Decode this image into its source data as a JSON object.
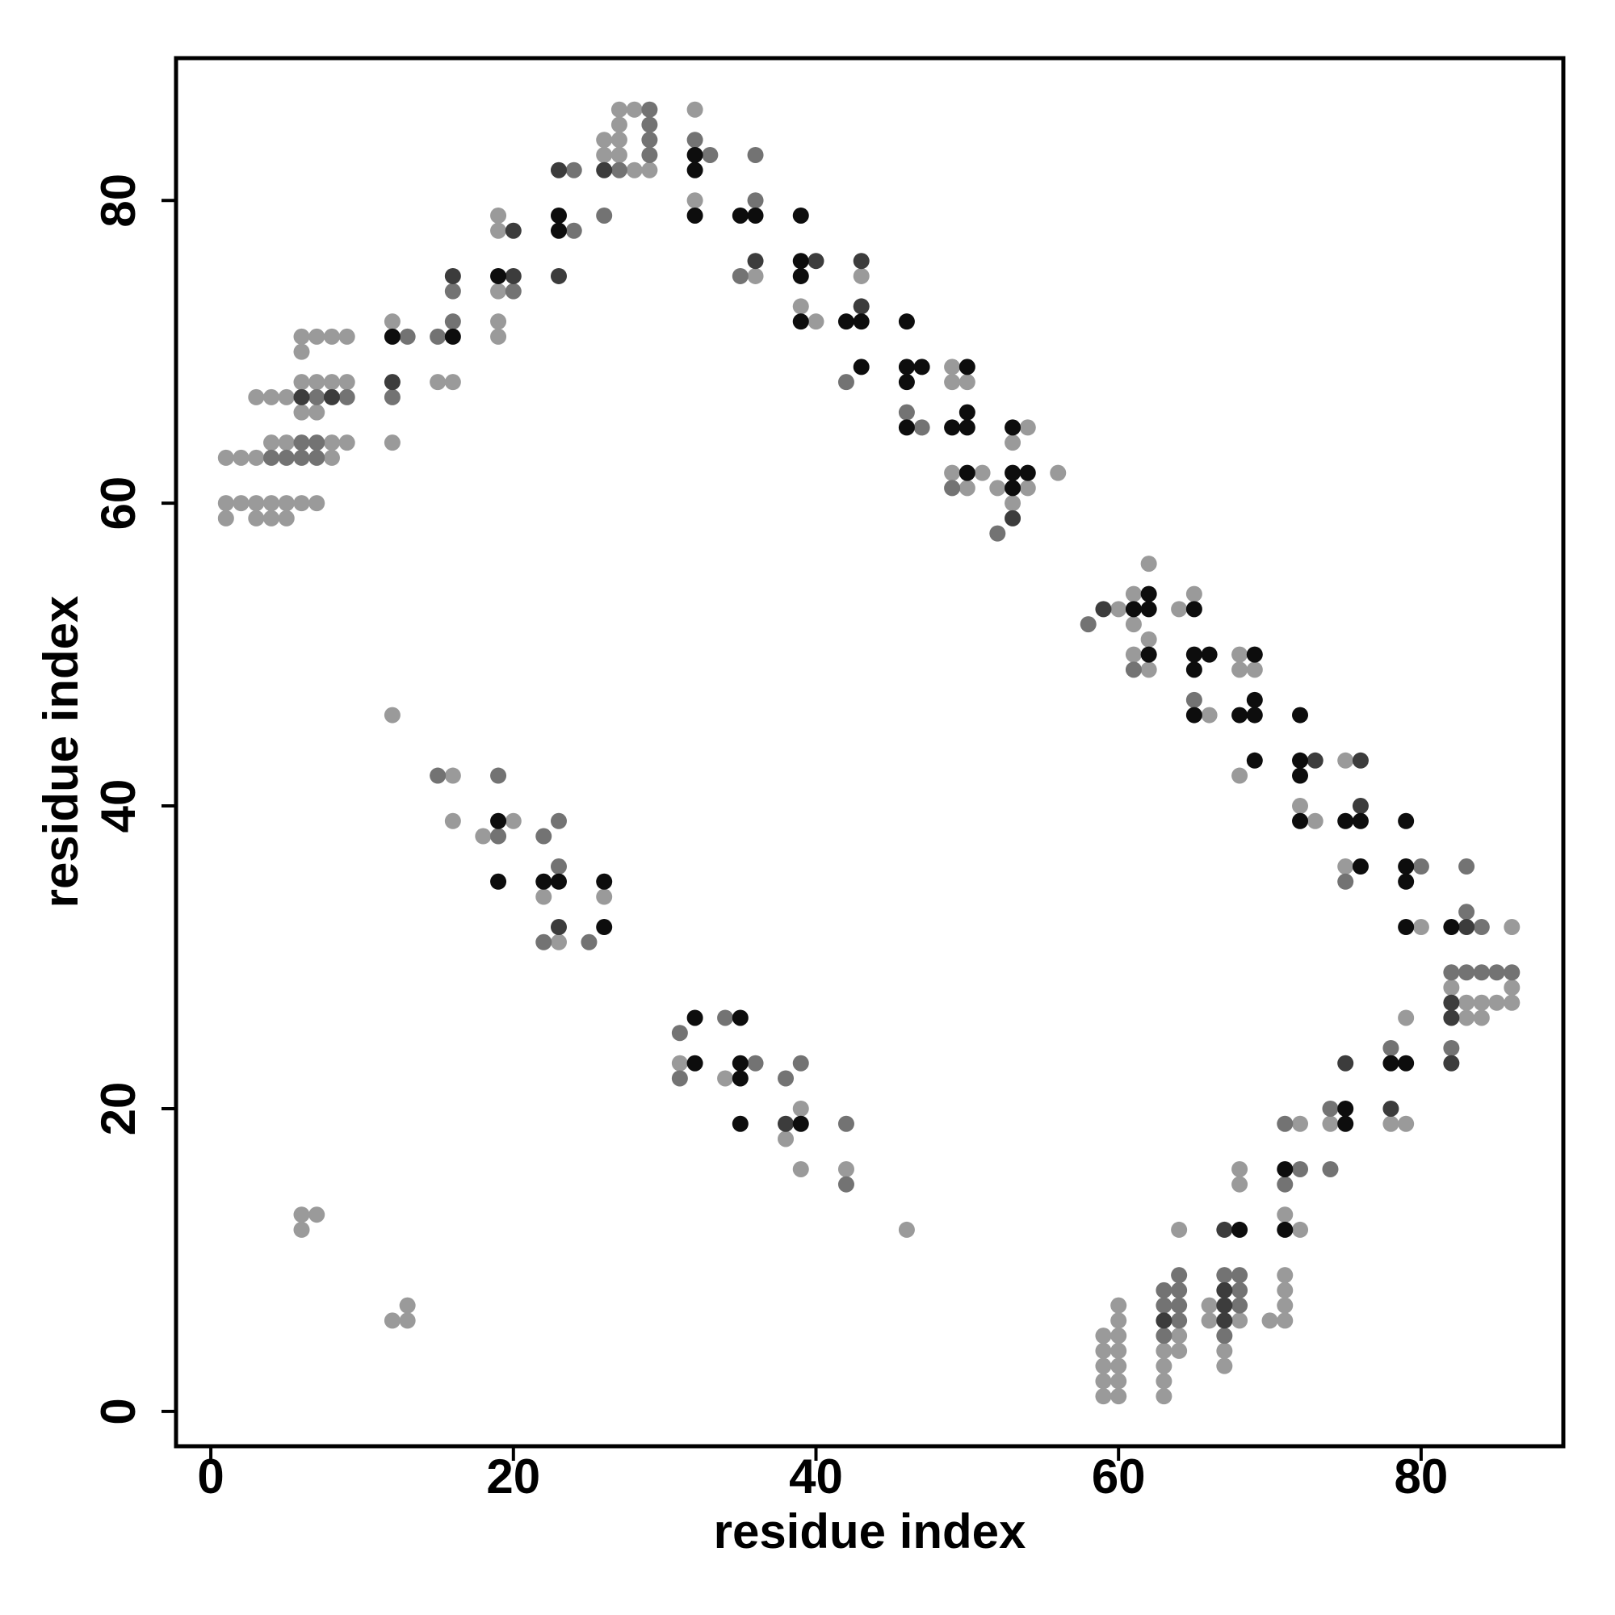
{
  "chart_data": {
    "type": "scatter",
    "x_label": "residue index",
    "y_label": "residue index",
    "xlim": [
      -2.3,
      89.4
    ],
    "ylim": [
      -2.3,
      89.4
    ],
    "xticks": [
      0,
      20,
      40,
      60,
      80
    ],
    "yticks": [
      0,
      20,
      40,
      60,
      80
    ],
    "series": [
      {
        "color": "#9a9a9a",
        "x": [
          1,
          3,
          4,
          5,
          1,
          2,
          3,
          4,
          5,
          6,
          7,
          1,
          2,
          3,
          8,
          4,
          5,
          8,
          9,
          6,
          7,
          3,
          4,
          5,
          6,
          7,
          8,
          9,
          6,
          6,
          7,
          8,
          9,
          12,
          12,
          15,
          16,
          19,
          19,
          19,
          19,
          19,
          26,
          26,
          27,
          27,
          27,
          27,
          28,
          28,
          29,
          32,
          32,
          36,
          39,
          40,
          43,
          49,
          49,
          49,
          50,
          50,
          51,
          52,
          53,
          53,
          54,
          54,
          56,
          60,
          61,
          61,
          61,
          62,
          62,
          62,
          64,
          65,
          66,
          68,
          68,
          68,
          69,
          72,
          73,
          75,
          75,
          80,
          86,
          82,
          86,
          83,
          84,
          85,
          86,
          83,
          84,
          78,
          79,
          79,
          74,
          71,
          72,
          72,
          70,
          71,
          71,
          71,
          71,
          67,
          67,
          68,
          68,
          68,
          66,
          66,
          63,
          63,
          63,
          63,
          64,
          64,
          64,
          59,
          59,
          59,
          59,
          59,
          60,
          60,
          60,
          60,
          60,
          60,
          60,
          6,
          6,
          7,
          12,
          12,
          13,
          13,
          16,
          16,
          18,
          20,
          22,
          23,
          26,
          31,
          34,
          38,
          39,
          39,
          42,
          46
        ],
        "y": [
          59,
          59,
          59,
          59,
          60,
          60,
          60,
          60,
          60,
          60,
          60,
          63,
          63,
          63,
          63,
          64,
          64,
          64,
          64,
          66,
          66,
          67,
          67,
          67,
          68,
          68,
          68,
          68,
          70,
          71,
          71,
          71,
          71,
          64,
          72,
          68,
          68,
          71,
          72,
          74,
          78,
          79,
          83,
          84,
          83,
          84,
          85,
          86,
          82,
          86,
          82,
          80,
          86,
          75,
          73,
          72,
          75,
          62,
          68,
          69,
          61,
          68,
          62,
          61,
          60,
          64,
          61,
          65,
          62,
          53,
          50,
          52,
          54,
          49,
          51,
          56,
          53,
          54,
          46,
          42,
          49,
          50,
          49,
          40,
          39,
          36,
          43,
          32,
          32,
          28,
          28,
          27,
          27,
          27,
          27,
          26,
          26,
          19,
          19,
          26,
          19,
          13,
          12,
          19,
          6,
          6,
          7,
          8,
          9,
          3,
          4,
          6,
          15,
          16,
          6,
          7,
          1,
          2,
          3,
          4,
          4,
          5,
          12,
          1,
          2,
          3,
          4,
          5,
          1,
          2,
          3,
          4,
          5,
          6,
          7,
          12,
          13,
          13,
          6,
          46,
          6,
          7,
          39,
          42,
          38,
          39,
          34,
          31,
          34,
          23,
          22,
          18,
          16,
          20,
          16,
          12
        ]
      },
      {
        "color": "#737373",
        "x": [
          4,
          5,
          6,
          7,
          6,
          7,
          7,
          9,
          12,
          13,
          15,
          16,
          16,
          20,
          24,
          24,
          26,
          27,
          29,
          29,
          29,
          29,
          32,
          33,
          35,
          36,
          36,
          42,
          46,
          47,
          49,
          52,
          58,
          61,
          65,
          75,
          80,
          83,
          83,
          84,
          82,
          83,
          84,
          85,
          86,
          82,
          78,
          74,
          74,
          71,
          71,
          72,
          67,
          67,
          68,
          68,
          68,
          63,
          63,
          63,
          64,
          64,
          64,
          64,
          15,
          19,
          19,
          22,
          22,
          23,
          23,
          25,
          31,
          31,
          34,
          36,
          38,
          39,
          42,
          42
        ],
        "y": [
          63,
          63,
          63,
          63,
          64,
          64,
          67,
          67,
          67,
          71,
          71,
          72,
          74,
          74,
          78,
          82,
          79,
          82,
          83,
          84,
          85,
          86,
          84,
          83,
          75,
          80,
          83,
          68,
          66,
          65,
          61,
          58,
          52,
          49,
          47,
          35,
          36,
          33,
          36,
          32,
          29,
          29,
          29,
          29,
          29,
          24,
          24,
          16,
          20,
          15,
          19,
          16,
          5,
          9,
          7,
          8,
          9,
          5,
          7,
          8,
          6,
          7,
          8,
          9,
          42,
          38,
          42,
          31,
          38,
          36,
          39,
          31,
          22,
          25,
          26,
          23,
          22,
          23,
          15,
          19
        ]
      },
      {
        "color": "#3c3c3c",
        "x": [
          6,
          8,
          12,
          16,
          20,
          20,
          23,
          23,
          26,
          36,
          40,
          43,
          43,
          53,
          59,
          73,
          76,
          76,
          83,
          82,
          82,
          82,
          78,
          75,
          67,
          67,
          67,
          67,
          63,
          23,
          38
        ],
        "y": [
          67,
          67,
          68,
          75,
          75,
          78,
          75,
          82,
          82,
          76,
          76,
          73,
          76,
          59,
          53,
          43,
          40,
          43,
          32,
          27,
          26,
          23,
          20,
          23,
          6,
          7,
          8,
          12,
          6,
          32,
          19
        ]
      },
      {
        "color": "#0d0d0d",
        "x": [
          12,
          16,
          19,
          23,
          23,
          32,
          32,
          32,
          35,
          36,
          39,
          39,
          39,
          39,
          42,
          43,
          43,
          46,
          46,
          46,
          46,
          47,
          49,
          50,
          50,
          50,
          50,
          53,
          53,
          53,
          54,
          61,
          62,
          62,
          62,
          65,
          65,
          65,
          65,
          66,
          68,
          69,
          69,
          69,
          69,
          72,
          72,
          72,
          72,
          75,
          76,
          76,
          79,
          79,
          79,
          79,
          82,
          78,
          79,
          75,
          75,
          71,
          71,
          68,
          19,
          19,
          22,
          23,
          26,
          26,
          32,
          32,
          35,
          35,
          35,
          35,
          39
        ],
        "y": [
          71,
          71,
          75,
          78,
          79,
          79,
          82,
          83,
          79,
          79,
          72,
          75,
          76,
          79,
          72,
          69,
          72,
          65,
          68,
          69,
          72,
          69,
          65,
          62,
          65,
          66,
          69,
          61,
          62,
          65,
          62,
          53,
          50,
          53,
          54,
          46,
          49,
          50,
          53,
          50,
          46,
          43,
          46,
          47,
          50,
          39,
          42,
          43,
          46,
          39,
          36,
          39,
          32,
          35,
          36,
          39,
          32,
          23,
          23,
          19,
          20,
          12,
          16,
          12,
          35,
          39,
          35,
          35,
          32,
          35,
          23,
          26,
          19,
          22,
          23,
          26,
          19
        ]
      }
    ]
  }
}
